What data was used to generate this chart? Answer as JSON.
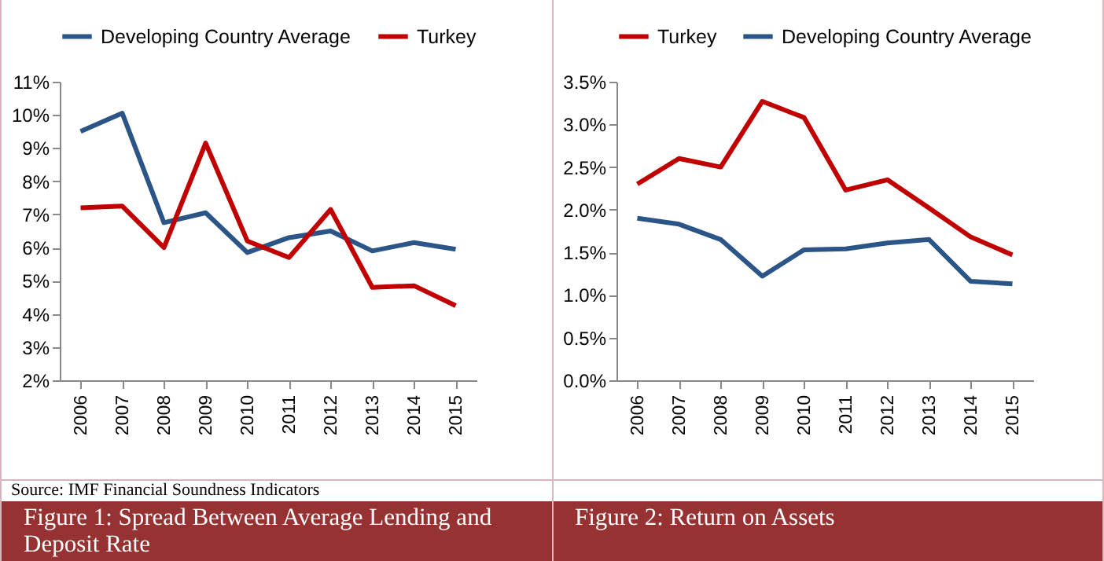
{
  "chart_data": [
    {
      "type": "line",
      "categories": [
        "2006",
        "2007",
        "2008",
        "2009",
        "2010",
        "2011",
        "2012",
        "2013",
        "2014",
        "2015"
      ],
      "series": [
        {
          "name": "Developing Country Average",
          "color": "#2c5587",
          "values": [
            9.5,
            10.05,
            6.75,
            7.05,
            5.85,
            6.3,
            6.5,
            5.9,
            6.15,
            5.95
          ]
        },
        {
          "name": "Turkey",
          "color": "#c00000",
          "values": [
            7.2,
            7.25,
            6.0,
            9.15,
            6.2,
            5.7,
            7.15,
            4.8,
            4.85,
            4.25
          ]
        }
      ],
      "ylim": [
        2,
        11
      ],
      "yticks": [
        {
          "value": 2,
          "label": "2%"
        },
        {
          "value": 3,
          "label": "3%"
        },
        {
          "value": 4,
          "label": "4%"
        },
        {
          "value": 5,
          "label": "5%"
        },
        {
          "value": 6,
          "label": "6%"
        },
        {
          "value": 7,
          "label": "7%"
        },
        {
          "value": 8,
          "label": "8%"
        },
        {
          "value": 9,
          "label": "9%"
        },
        {
          "value": 10,
          "label": "10%"
        },
        {
          "value": 11,
          "label": "11%"
        }
      ],
      "legend": "top",
      "grid": false,
      "annotations": [
        "Source: IMF Financial Soundness Indicators",
        "Figure 1: Spread Between Average Lending and Deposit Rate"
      ]
    },
    {
      "type": "line",
      "categories": [
        "2006",
        "2007",
        "2008",
        "2009",
        "2010",
        "2011",
        "2012",
        "2013",
        "2014",
        "2015"
      ],
      "series": [
        {
          "name": "Turkey",
          "color": "#c00000",
          "values": [
            2.3,
            2.6,
            2.5,
            3.27,
            3.08,
            2.23,
            2.35,
            2.02,
            1.68,
            1.47
          ]
        },
        {
          "name": "Developing Country Average",
          "color": "#2c5587",
          "values": [
            1.9,
            1.83,
            1.65,
            1.22,
            1.53,
            1.54,
            1.61,
            1.65,
            1.16,
            1.13
          ]
        }
      ],
      "ylim": [
        0,
        3.5
      ],
      "yticks": [
        {
          "value": 0,
          "label": "0.0%"
        },
        {
          "value": 0.5,
          "label": "0.5%"
        },
        {
          "value": 1,
          "label": "1.0%"
        },
        {
          "value": 1.5,
          "label": "1.5%"
        },
        {
          "value": 2,
          "label": "2.0%"
        },
        {
          "value": 2.5,
          "label": "2.5%"
        },
        {
          "value": 3,
          "label": "3.0%"
        },
        {
          "value": 3.5,
          "label": "3.5%"
        }
      ],
      "legend": "top",
      "grid": false,
      "annotations": [
        "Figure 2: Return on Assets"
      ]
    }
  ]
}
